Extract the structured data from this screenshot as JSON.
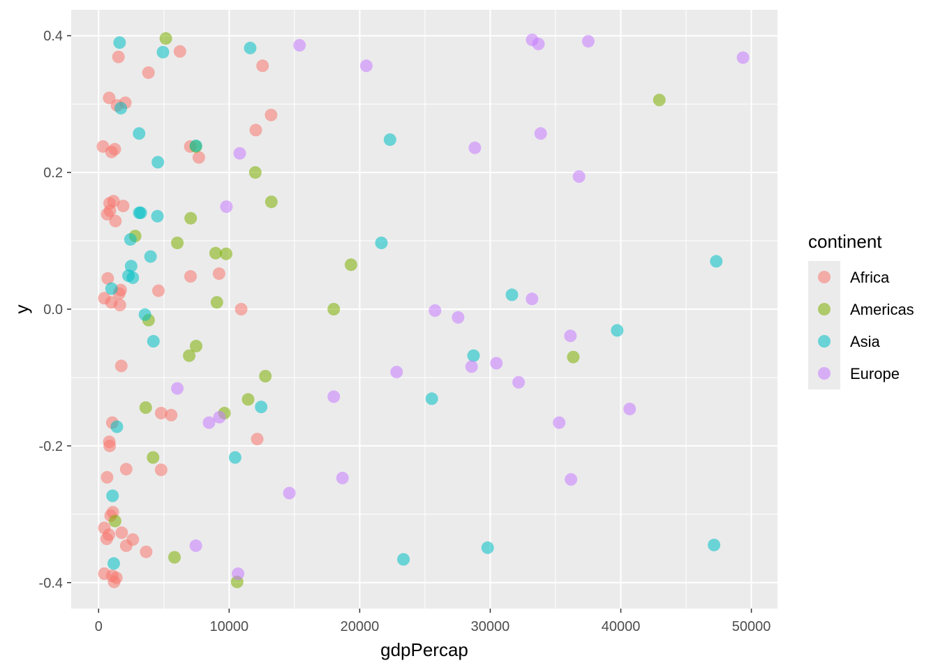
{
  "chart_data": {
    "type": "scatter",
    "xlabel": "gdpPercap",
    "ylabel": "y",
    "xlim": [
      -2100,
      52000
    ],
    "ylim": [
      -0.438,
      0.438
    ],
    "x_ticks": [
      0,
      10000,
      20000,
      30000,
      40000,
      50000
    ],
    "x_tick_labels": [
      "0",
      "10000",
      "20000",
      "30000",
      "40000",
      "50000"
    ],
    "y_ticks": [
      -0.4,
      -0.2,
      0.0,
      0.2,
      0.4
    ],
    "y_tick_labels": [
      "-0.4",
      "-0.2",
      "0.0",
      "0.2",
      "0.4"
    ],
    "grid": true,
    "point_opacity": 0.55,
    "legend": {
      "title": "continent",
      "position": "right"
    },
    "series": [
      {
        "name": "Africa",
        "color": "#F8766D",
        "points": [
          [
            1520,
            0.369
          ],
          [
            3820,
            0.346
          ],
          [
            6230,
            0.377
          ],
          [
            12560,
            0.356
          ],
          [
            810,
            0.309
          ],
          [
            1410,
            0.298
          ],
          [
            2050,
            0.302
          ],
          [
            13210,
            0.284
          ],
          [
            12040,
            0.262
          ],
          [
            330,
            0.238
          ],
          [
            1240,
            0.234
          ],
          [
            990,
            0.23
          ],
          [
            7680,
            0.222
          ],
          [
            7020,
            0.238
          ],
          [
            840,
            0.155
          ],
          [
            1140,
            0.158
          ],
          [
            1880,
            0.151
          ],
          [
            660,
            0.139
          ],
          [
            870,
            0.144
          ],
          [
            1290,
            0.129
          ],
          [
            7040,
            0.048
          ],
          [
            9230,
            0.052
          ],
          [
            700,
            0.045
          ],
          [
            4580,
            0.027
          ],
          [
            1690,
            0.028
          ],
          [
            1580,
            0.023
          ],
          [
            440,
            0.016
          ],
          [
            980,
            0.01
          ],
          [
            1630,
            0.006
          ],
          [
            10920,
            0.0
          ],
          [
            1740,
            -0.083
          ],
          [
            1050,
            -0.166
          ],
          [
            4790,
            -0.152
          ],
          [
            5560,
            -0.155
          ],
          [
            820,
            -0.194
          ],
          [
            850,
            -0.2
          ],
          [
            12150,
            -0.19
          ],
          [
            2110,
            -0.234
          ],
          [
            4790,
            -0.235
          ],
          [
            650,
            -0.246
          ],
          [
            1090,
            -0.297
          ],
          [
            920,
            -0.302
          ],
          [
            440,
            -0.32
          ],
          [
            790,
            -0.33
          ],
          [
            620,
            -0.336
          ],
          [
            1770,
            -0.327
          ],
          [
            2620,
            -0.337
          ],
          [
            2110,
            -0.346
          ],
          [
            3640,
            -0.355
          ],
          [
            440,
            -0.387
          ],
          [
            1050,
            -0.39
          ],
          [
            1360,
            -0.393
          ],
          [
            1190,
            -0.399
          ]
        ]
      },
      {
        "name": "Americas",
        "color": "#7CAE00",
        "points": [
          [
            5150,
            0.396
          ],
          [
            42950,
            0.306
          ],
          [
            7450,
            0.238
          ],
          [
            12000,
            0.2
          ],
          [
            13230,
            0.157
          ],
          [
            7050,
            0.133
          ],
          [
            2800,
            0.107
          ],
          [
            6030,
            0.097
          ],
          [
            8960,
            0.082
          ],
          [
            9770,
            0.081
          ],
          [
            19330,
            0.065
          ],
          [
            9060,
            0.01
          ],
          [
            18010,
            0.0
          ],
          [
            3830,
            -0.016
          ],
          [
            7470,
            -0.054
          ],
          [
            6940,
            -0.068
          ],
          [
            36360,
            -0.07
          ],
          [
            12770,
            -0.098
          ],
          [
            11450,
            -0.132
          ],
          [
            3610,
            -0.144
          ],
          [
            9640,
            -0.152
          ],
          [
            4170,
            -0.217
          ],
          [
            1260,
            -0.31
          ],
          [
            5810,
            -0.363
          ],
          [
            10610,
            -0.399
          ]
        ]
      },
      {
        "name": "Asia",
        "color": "#00BFC4",
        "points": [
          [
            1610,
            0.39
          ],
          [
            4930,
            0.376
          ],
          [
            11610,
            0.382
          ],
          [
            1700,
            0.294
          ],
          [
            3100,
            0.257
          ],
          [
            22320,
            0.248
          ],
          [
            7460,
            0.239
          ],
          [
            4540,
            0.215
          ],
          [
            3110,
            0.141
          ],
          [
            3230,
            0.141
          ],
          [
            4510,
            0.136
          ],
          [
            2440,
            0.102
          ],
          [
            21660,
            0.097
          ],
          [
            3980,
            0.077
          ],
          [
            2490,
            0.063
          ],
          [
            47310,
            0.07
          ],
          [
            2290,
            0.049
          ],
          [
            2620,
            0.046
          ],
          [
            990,
            0.03
          ],
          [
            31660,
            0.021
          ],
          [
            3550,
            -0.008
          ],
          [
            39720,
            -0.031
          ],
          [
            4200,
            -0.047
          ],
          [
            28720,
            -0.068
          ],
          [
            25520,
            -0.131
          ],
          [
            12450,
            -0.143
          ],
          [
            1400,
            -0.172
          ],
          [
            10460,
            -0.217
          ],
          [
            1070,
            -0.273
          ],
          [
            29800,
            -0.349
          ],
          [
            47140,
            -0.345
          ],
          [
            1160,
            -0.372
          ],
          [
            23350,
            -0.366
          ]
        ]
      },
      {
        "name": "Europe",
        "color": "#C77CFF",
        "points": [
          [
            15390,
            0.386
          ],
          [
            20510,
            0.356
          ],
          [
            33210,
            0.394
          ],
          [
            33690,
            0.388
          ],
          [
            37510,
            0.392
          ],
          [
            49360,
            0.368
          ],
          [
            33860,
            0.257
          ],
          [
            28820,
            0.236
          ],
          [
            10810,
            0.228
          ],
          [
            36800,
            0.194
          ],
          [
            9790,
            0.15
          ],
          [
            33200,
            0.015
          ],
          [
            25770,
            -0.002
          ],
          [
            27540,
            -0.012
          ],
          [
            36140,
            -0.039
          ],
          [
            30470,
            -0.079
          ],
          [
            28570,
            -0.084
          ],
          [
            22830,
            -0.092
          ],
          [
            32170,
            -0.107
          ],
          [
            6030,
            -0.116
          ],
          [
            18010,
            -0.128
          ],
          [
            40680,
            -0.146
          ],
          [
            9260,
            -0.158
          ],
          [
            8460,
            -0.166
          ],
          [
            35280,
            -0.166
          ],
          [
            18680,
            -0.247
          ],
          [
            36180,
            -0.249
          ],
          [
            14610,
            -0.269
          ],
          [
            7450,
            -0.346
          ],
          [
            10680,
            -0.387
          ]
        ]
      }
    ]
  }
}
